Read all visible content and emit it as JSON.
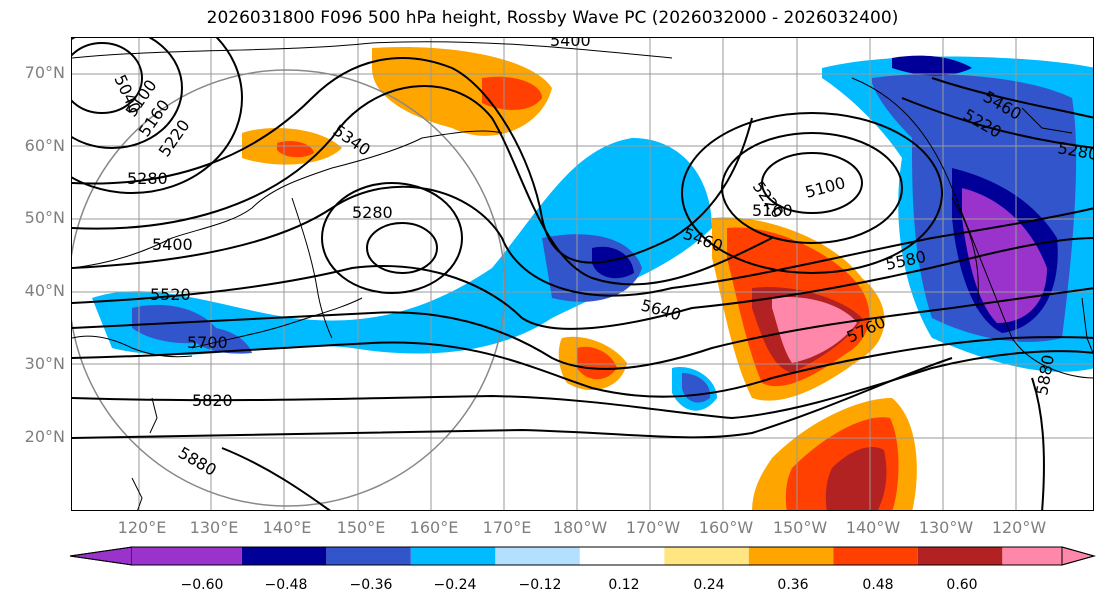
{
  "title": "2026031800 F096 500 hPa height, Rossby Wave PC (2026032000 - 2026032400)",
  "lat_labels": [
    "70°N",
    "60°N",
    "50°N",
    "40°N",
    "30°N",
    "20°N"
  ],
  "lon_labels": [
    "120°E",
    "130°E",
    "140°E",
    "150°E",
    "160°E",
    "170°E",
    "180°W",
    "170°W",
    "160°W",
    "150°W",
    "140°W",
    "130°W",
    "120°W"
  ],
  "contour_labels": [
    "5040",
    "5100",
    "5160",
    "5220",
    "5280",
    "5340",
    "5400",
    "5460",
    "5520",
    "5580",
    "5640",
    "5700",
    "5760",
    "5820",
    "5880"
  ],
  "colorbar": {
    "ticks": [
      "−0.60",
      "−0.48",
      "−0.36",
      "−0.24",
      "−0.12",
      "0.12",
      "0.24",
      "0.36",
      "0.48",
      "0.60"
    ],
    "colors": [
      "#9933cc",
      "#000099",
      "#3355cc",
      "#00bbff",
      "#b3e0ff",
      "#ffffff",
      "#ffe680",
      "#ffa500",
      "#ff4000",
      "#b22222",
      "#ff88aa"
    ]
  }
}
